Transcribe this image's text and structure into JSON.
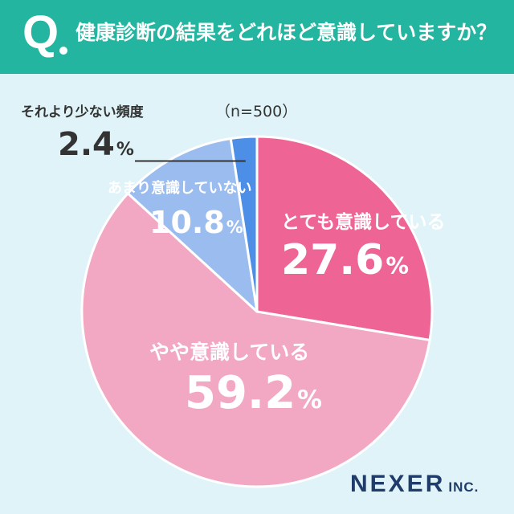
{
  "header": {
    "q_letter": "Q",
    "question": "健康診断の結果をどれほど意識していますか？"
  },
  "note": "（n=500）",
  "logo": {
    "main": "NEXER",
    "sub": "INC."
  },
  "colors": {
    "header": "#23b5a0",
    "background": "#dff3f8",
    "very_conscious": "#ee6494",
    "somewhat_conscious": "#f2a7c3",
    "not_very": "#9bbcee",
    "rarely": "#4d8fe6",
    "logo": "#1f3c6a"
  },
  "chart_data": {
    "type": "pie",
    "title": "健康診断の結果をどれほど意識していますか？",
    "n_label": "（n=500）",
    "unit": "%",
    "start": "12 o'clock",
    "direction": "clockwise",
    "labels": [
      "とても意識している",
      "やや意識している",
      "あまり意識していない",
      "それより少ない頻度"
    ],
    "values": [
      27.6,
      59.2,
      10.8,
      2.4
    ],
    "value_labels": [
      "27.6",
      "59.2",
      "10.8",
      "2.4"
    ],
    "colors": [
      "#ee6494",
      "#f2a7c3",
      "#9bbcee",
      "#4d8fe6"
    ]
  }
}
